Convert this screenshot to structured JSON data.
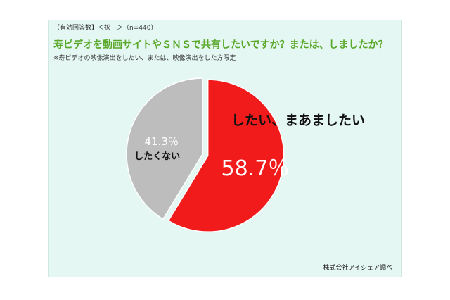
{
  "header": {
    "meta": "【有効回答数】＜択一＞（n=440）",
    "title": "寿ビデオを動画サイトやＳＮＳで共有したいですか？または、しましたか？",
    "note": "※寿ビデオの映像演出をしたい、または、映像演出をした方限定"
  },
  "footer": {
    "credit": "株式会社アイシェア調べ"
  },
  "chart_data": {
    "type": "pie",
    "slices": [
      {
        "label": "したい、まあましたい",
        "value": 58.7,
        "value_label": "58.7％",
        "color": "#f21b1b"
      },
      {
        "label": "したくない",
        "value": 41.3,
        "value_label": "41.3％",
        "color": "#bdbdbd"
      }
    ],
    "start": "12 o'clock",
    "direction": "clockwise",
    "exploded": "したい、まあましたい"
  }
}
